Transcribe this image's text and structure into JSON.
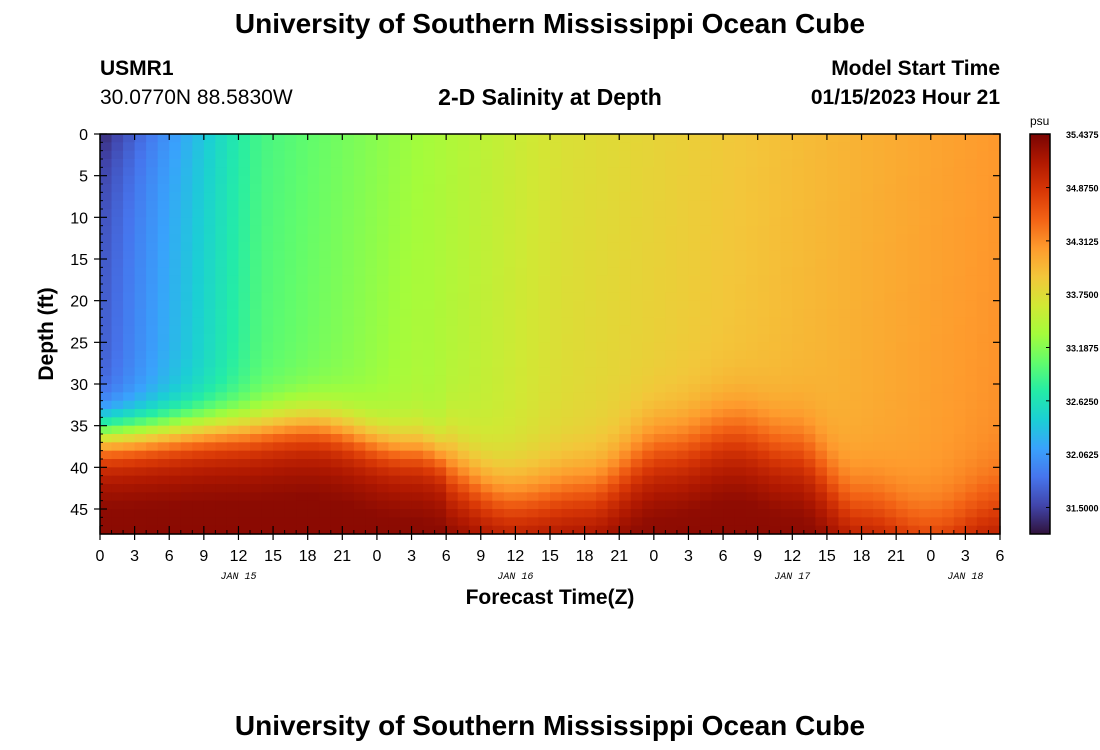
{
  "header": {
    "title": "University of Southern Mississippi Ocean Cube",
    "station_id": "USMR1",
    "station_coords": "30.0770N  88.5830W",
    "plot_title": "2-D Salinity at Depth",
    "model_start_label": "Model Start Time",
    "model_start_value": "01/15/2023 Hour 21"
  },
  "footer": {
    "title": "University of Southern Mississippi Ocean Cube"
  },
  "chart_data": {
    "type": "heatmap",
    "title": "2-D Salinity at Depth",
    "xlabel": "Forecast Time(Z)",
    "ylabel": "Depth (ft)",
    "x_range_hours": [
      0,
      78
    ],
    "y_range_ft": [
      0,
      48
    ],
    "x_ticks": [
      "0",
      "3",
      "6",
      "9",
      "12",
      "15",
      "18",
      "21",
      "0",
      "3",
      "6",
      "9",
      "12",
      "15",
      "18",
      "21",
      "0",
      "3",
      "6",
      "9",
      "12",
      "15",
      "18",
      "21",
      "0",
      "3",
      "6"
    ],
    "x_dates": [
      {
        "label": "JAN 15",
        "hour": 12
      },
      {
        "label": "JAN 16",
        "hour": 36
      },
      {
        "label": "JAN 17",
        "hour": 60
      },
      {
        "label": "JAN 18",
        "hour": 75
      }
    ],
    "y_ticks": [
      "0",
      "5",
      "10",
      "15",
      "20",
      "25",
      "30",
      "35",
      "40",
      "45"
    ],
    "colorbar": {
      "unit": "psu",
      "min": 31.22,
      "max": 35.44,
      "tick_labels": [
        "35.4375",
        "34.8750",
        "34.3125",
        "33.7500",
        "33.1875",
        "32.6250",
        "32.0625",
        "31.5000"
      ],
      "tick_values": [
        35.4375,
        34.875,
        34.3125,
        33.75,
        33.1875,
        32.625,
        32.0625,
        31.5
      ],
      "colors": [
        "#30123b",
        "#4145ab",
        "#4675ed",
        "#39a2fc",
        "#1bcfd4",
        "#24eca6",
        "#61fc6c",
        "#a4fc3b",
        "#d1e834",
        "#f3c63a",
        "#fe9b2d",
        "#f36315",
        "#d93806",
        "#b11901",
        "#7a0402"
      ]
    },
    "field_description": "surface fresh (~31.6 psu) near hours 0-15, transitions to ~33.7 psu by hour 36 and ~34.2 psu by hour 78; saline bottom layer (~35.3 psu) rising to ~35 ft near hours 0-18 and 54-60, sinking to ~45 ft near hour 36 and beyond hour 66"
  }
}
